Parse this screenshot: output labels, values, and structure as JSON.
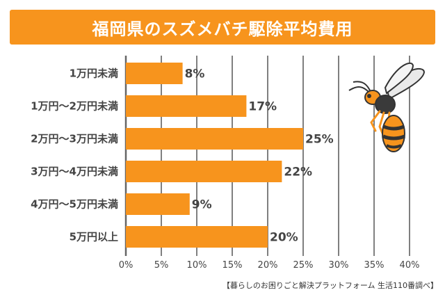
{
  "chart_data": {
    "type": "bar",
    "orientation": "horizontal",
    "title": "福岡県のスズメバチ駆除平均費用",
    "categories": [
      "1万円未満",
      "1万円〜2万円未満",
      "2万円〜3万円未満",
      "3万円〜4万円未満",
      "4万円〜5万円未満",
      "5万円以上"
    ],
    "values": [
      8,
      17,
      25,
      22,
      9,
      20
    ],
    "value_labels": [
      "8%",
      "17%",
      "25%",
      "22%",
      "9%",
      "20%"
    ],
    "x_ticks": [
      "0%",
      "5%",
      "10%",
      "15%",
      "20%",
      "25%",
      "30%",
      "35%",
      "40%"
    ],
    "xlim": [
      0,
      40
    ],
    "grid": true,
    "bar_color": "#f7941d",
    "title_bg_color": "#f7941d"
  },
  "source": "【暮らしのお困りごと解決プラットフォーム 生活110番調べ】",
  "illustration": "hornet-icon"
}
